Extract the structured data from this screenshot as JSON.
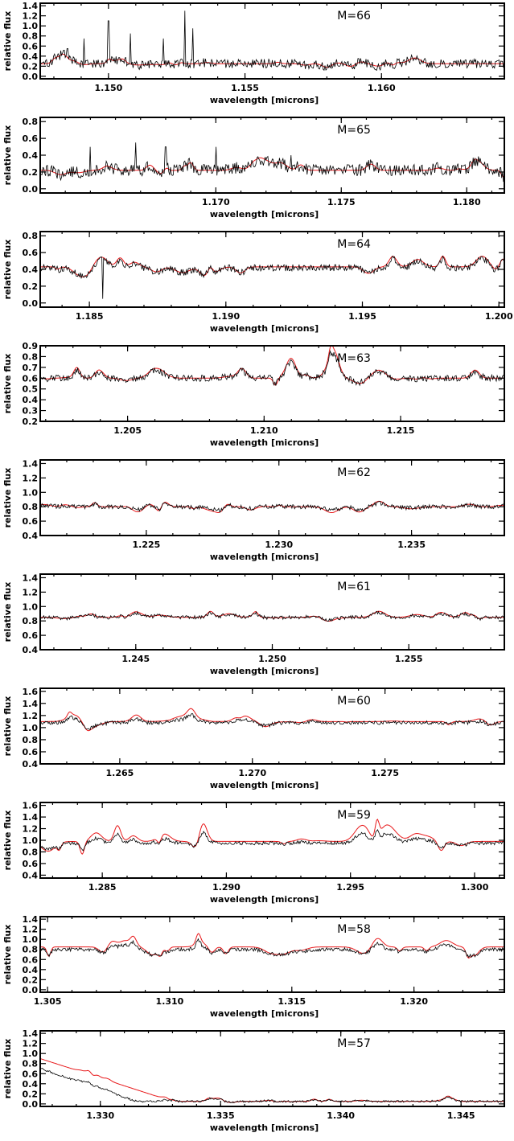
{
  "colors": {
    "observed": "#000000",
    "model": "#e8191b",
    "frame": "#000000"
  },
  "chart_data": [
    {
      "type": "line",
      "order_label": "M=66",
      "xlabel": "wavelength [microns]",
      "ylabel": "relative flux",
      "xlim": [
        1.1475,
        1.1645
      ],
      "ylim": [
        -0.05,
        1.45
      ],
      "xticks": [
        1.15,
        1.155,
        1.16
      ],
      "xtick_labels": [
        "1.150",
        "1.155",
        "1.160"
      ],
      "yticks": [
        0.0,
        0.2,
        0.4,
        0.6,
        0.8,
        1.0,
        1.2,
        1.4
      ],
      "ytick_labels": [
        "0.0",
        "0.2",
        "0.4",
        "0.6",
        "0.8",
        "1.0",
        "1.2",
        "1.4"
      ],
      "series": [
        {
          "role": "observed",
          "base": 0.25,
          "amp": 0.1,
          "noise": 0.09,
          "seed": 11,
          "spikes": [
            [
              1.1485,
              0.55
            ],
            [
              1.1491,
              0.75
            ],
            [
              1.15,
              1.1
            ],
            [
              1.1508,
              0.85
            ],
            [
              1.152,
              0.75
            ],
            [
              1.1528,
              1.3
            ],
            [
              1.1531,
              0.95
            ]
          ]
        },
        {
          "role": "model",
          "base": 0.25,
          "amp": 0.1,
          "seed": 11
        }
      ]
    },
    {
      "type": "line",
      "order_label": "M=65",
      "xlabel": "wavelength [microns]",
      "ylabel": "relative flux",
      "xlim": [
        1.163,
        1.1815
      ],
      "ylim": [
        -0.05,
        0.85
      ],
      "xticks": [
        1.17,
        1.175,
        1.18
      ],
      "xtick_labels": [
        "1.170",
        "1.175",
        "1.180"
      ],
      "yticks": [
        0.0,
        0.2,
        0.4,
        0.6,
        0.8
      ],
      "ytick_labels": [
        "0.0",
        "0.2",
        "0.4",
        "0.6",
        "0.8"
      ],
      "series": [
        {
          "role": "observed",
          "base": 0.22,
          "amp": 0.09,
          "noise": 0.07,
          "seed": 23,
          "spikes": [
            [
              1.165,
              0.5
            ],
            [
              1.1668,
              0.55
            ],
            [
              1.168,
              0.5
            ],
            [
              1.17,
              0.5
            ],
            [
              1.173,
              0.4
            ]
          ]
        },
        {
          "role": "model",
          "base": 0.22,
          "amp": 0.1,
          "seed": 23
        }
      ]
    },
    {
      "type": "line",
      "order_label": "M=64",
      "xlabel": "wavelength [microns]",
      "ylabel": "relative flux",
      "xlim": [
        1.1832,
        1.2002
      ],
      "ylim": [
        -0.05,
        0.85
      ],
      "xticks": [
        1.185,
        1.19,
        1.195,
        1.2
      ],
      "xtick_labels": [
        "1.185",
        "1.190",
        "1.195",
        "1.200"
      ],
      "yticks": [
        0.0,
        0.2,
        0.4,
        0.6,
        0.8
      ],
      "ytick_labels": [
        "0.0",
        "0.2",
        "0.4",
        "0.6",
        "0.8"
      ],
      "series": [
        {
          "role": "observed",
          "base": 0.42,
          "amp": 0.1,
          "noise": 0.04,
          "seed": 37,
          "spikes": [
            [
              1.1855,
              0.05
            ]
          ]
        },
        {
          "role": "model",
          "base": 0.43,
          "amp": 0.12,
          "seed": 37
        }
      ]
    },
    {
      "type": "line",
      "order_label": "M=63",
      "xlabel": "wavelength [microns]",
      "ylabel": "relative flux",
      "xlim": [
        1.2018,
        1.2188
      ],
      "ylim": [
        0.2,
        0.9
      ],
      "xticks": [
        1.205,
        1.21,
        1.215
      ],
      "xtick_labels": [
        "1.205",
        "1.210",
        "1.215"
      ],
      "yticks": [
        0.2,
        0.3,
        0.4,
        0.5,
        0.6,
        0.7,
        0.8,
        0.9
      ],
      "ytick_labels": [
        "0.2",
        "0.3",
        "0.4",
        "0.5",
        "0.6",
        "0.7",
        "0.8",
        "0.9"
      ],
      "series": [
        {
          "role": "observed",
          "base": 0.6,
          "amp": 0.07,
          "noise": 0.03,
          "seed": 41,
          "spikes": []
        },
        {
          "role": "model",
          "base": 0.6,
          "amp": 0.09,
          "seed": 41
        }
      ]
    },
    {
      "type": "line",
      "order_label": "M=62",
      "xlabel": "wavelength [microns]",
      "ylabel": "relative flux",
      "xlim": [
        1.221,
        1.2385
      ],
      "ylim": [
        0.4,
        1.45
      ],
      "xticks": [
        1.225,
        1.23,
        1.235
      ],
      "xtick_labels": [
        "1.225",
        "1.230",
        "1.235"
      ],
      "yticks": [
        0.4,
        0.6,
        0.8,
        1.0,
        1.2,
        1.4
      ],
      "ytick_labels": [
        "0.4",
        "0.6",
        "0.8",
        "1.0",
        "1.2",
        "1.4"
      ],
      "series": [
        {
          "role": "observed",
          "base": 0.8,
          "amp": 0.05,
          "noise": 0.03,
          "seed": 53,
          "spikes": []
        },
        {
          "role": "model",
          "base": 0.8,
          "amp": 0.08,
          "seed": 53
        }
      ]
    },
    {
      "type": "line",
      "order_label": "M=61",
      "xlabel": "wavelength [microns]",
      "ylabel": "relative flux",
      "xlim": [
        1.2415,
        1.2585
      ],
      "ylim": [
        0.4,
        1.45
      ],
      "xticks": [
        1.245,
        1.25,
        1.255
      ],
      "xtick_labels": [
        "1.245",
        "1.250",
        "1.255"
      ],
      "yticks": [
        0.4,
        0.6,
        0.8,
        1.0,
        1.2,
        1.4
      ],
      "ytick_labels": [
        "0.4",
        "0.6",
        "0.8",
        "1.0",
        "1.2",
        "1.4"
      ],
      "series": [
        {
          "role": "observed",
          "base": 0.85,
          "amp": 0.06,
          "noise": 0.025,
          "seed": 61,
          "spikes": []
        },
        {
          "role": "model",
          "base": 0.85,
          "amp": 0.08,
          "seed": 61
        }
      ]
    },
    {
      "type": "line",
      "order_label": "M=60",
      "xlabel": "wavelength [microns]",
      "ylabel": "relative flux",
      "xlim": [
        1.262,
        1.2795
      ],
      "ylim": [
        0.4,
        1.65
      ],
      "xticks": [
        1.265,
        1.27,
        1.275
      ],
      "xtick_labels": [
        "1.265",
        "1.270",
        "1.275"
      ],
      "yticks": [
        0.4,
        0.6,
        0.8,
        1.0,
        1.2,
        1.4,
        1.6
      ],
      "ytick_labels": [
        "0.4",
        "0.6",
        "0.8",
        "1.0",
        "1.2",
        "1.4",
        "1.6"
      ],
      "series": [
        {
          "role": "observed",
          "base": 1.08,
          "amp": 0.06,
          "noise": 0.03,
          "seed": 71,
          "spikes": []
        },
        {
          "role": "model",
          "base": 1.1,
          "amp": 0.1,
          "seed": 71
        }
      ]
    },
    {
      "type": "line",
      "order_label": "M=59",
      "xlabel": "wavelength [microns]",
      "ylabel": "relative flux",
      "xlim": [
        1.2825,
        1.3012
      ],
      "ylim": [
        0.35,
        1.65
      ],
      "xticks": [
        1.285,
        1.29,
        1.295,
        1.3
      ],
      "xtick_labels": [
        "1.285",
        "1.290",
        "1.295",
        "1.300"
      ],
      "yticks": [
        0.4,
        0.6,
        0.8,
        1.0,
        1.2,
        1.4,
        1.6
      ],
      "ytick_labels": [
        "0.4",
        "0.6",
        "0.8",
        "1.0",
        "1.2",
        "1.4",
        "1.6"
      ],
      "series": [
        {
          "role": "observed",
          "base": 0.95,
          "amp": 0.16,
          "noise": 0.03,
          "seed": 83,
          "spikes": []
        },
        {
          "role": "model",
          "base": 0.98,
          "amp": 0.28,
          "seed": 83
        }
      ]
    },
    {
      "type": "line",
      "order_label": "M=58",
      "xlabel": "wavelength [microns]",
      "ylabel": "relative flux",
      "xlim": [
        1.3047,
        1.3237
      ],
      "ylim": [
        -0.05,
        1.45
      ],
      "xticks": [
        1.305,
        1.31,
        1.315,
        1.32
      ],
      "xtick_labels": [
        "1.305",
        "1.310",
        "1.315",
        "1.320"
      ],
      "yticks": [
        0.0,
        0.2,
        0.4,
        0.6,
        0.8,
        1.0,
        1.2,
        1.4
      ],
      "ytick_labels": [
        "0.0",
        "0.2",
        "0.4",
        "0.6",
        "0.8",
        "1.0",
        "1.2",
        "1.4"
      ],
      "series": [
        {
          "role": "observed",
          "base": 0.8,
          "amp": 0.16,
          "noise": 0.035,
          "seed": 97,
          "spikes": []
        },
        {
          "role": "model",
          "base": 0.85,
          "amp": 0.24,
          "seed": 97
        }
      ]
    },
    {
      "type": "line",
      "order_label": "M=57",
      "xlabel": "wavelength [microns]",
      "ylabel": "relative flux",
      "xlim": [
        1.3275,
        1.3468
      ],
      "ylim": [
        -0.05,
        1.45
      ],
      "xticks": [
        1.33,
        1.335,
        1.34,
        1.345
      ],
      "xtick_labels": [
        "1.330",
        "1.335",
        "1.340",
        "1.345"
      ],
      "yticks": [
        0.0,
        0.2,
        0.4,
        0.6,
        0.8,
        1.0,
        1.2,
        1.4
      ],
      "ytick_labels": [
        "0.0",
        "0.2",
        "0.4",
        "0.6",
        "0.8",
        "1.0",
        "1.2",
        "1.4"
      ],
      "series": [
        {
          "role": "observed",
          "base": 0.05,
          "amp": 0.04,
          "noise": 0.02,
          "seed": 101,
          "decay": [
            0.65,
            1.3315
          ],
          "spikes": []
        },
        {
          "role": "model",
          "base": 0.05,
          "amp": 0.05,
          "seed": 101,
          "decay": [
            0.85,
            1.333
          ]
        }
      ]
    }
  ]
}
